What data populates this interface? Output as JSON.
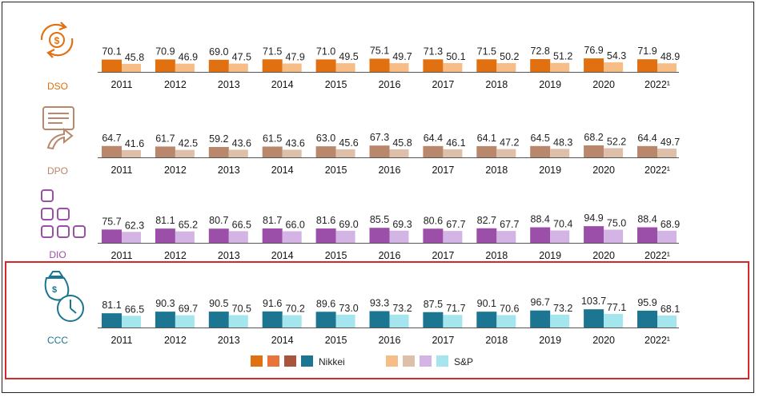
{
  "chart_data": [
    {
      "type": "bar",
      "name": "DSO",
      "title": "DSO",
      "categories": [
        "2011",
        "2012",
        "2013",
        "2014",
        "2015",
        "2016",
        "2017",
        "2018",
        "2019",
        "2020",
        "2022¹"
      ],
      "series": [
        {
          "values": [
            70.1,
            70.9,
            69.0,
            71.5,
            71.0,
            75.1,
            71.3,
            71.5,
            72.8,
            76.9,
            71.9
          ]
        },
        {
          "values": [
            45.8,
            46.9,
            47.5,
            47.9,
            49.5,
            49.7,
            50.1,
            50.2,
            51.2,
            54.3,
            48.9
          ]
        }
      ],
      "colors": [
        "#e07010",
        "#f7bd86"
      ],
      "icon": "money-cycle-icon"
    },
    {
      "type": "bar",
      "name": "DPO",
      "title": "DPO",
      "categories": [
        "2011",
        "2012",
        "2013",
        "2014",
        "2015",
        "2016",
        "2017",
        "2018",
        "2019",
        "2020",
        "2022¹"
      ],
      "series": [
        {
          "values": [
            64.7,
            61.7,
            59.2,
            61.5,
            63.0,
            67.3,
            64.4,
            64.1,
            64.5,
            68.2,
            64.4
          ]
        },
        {
          "values": [
            41.6,
            42.5,
            43.6,
            43.6,
            45.6,
            45.8,
            46.1,
            47.2,
            48.3,
            52.2,
            49.7
          ]
        }
      ],
      "colors": [
        "#b8876c",
        "#dec0aa"
      ],
      "icon": "invoice-icon"
    },
    {
      "type": "bar",
      "name": "DIO",
      "title": "DIO",
      "categories": [
        "2011",
        "2012",
        "2013",
        "2014",
        "2015",
        "2016",
        "2017",
        "2018",
        "2019",
        "2020",
        "2022¹"
      ],
      "series": [
        {
          "values": [
            75.7,
            81.1,
            80.7,
            81.7,
            81.6,
            85.5,
            80.6,
            82.7,
            88.4,
            94.9,
            88.4
          ]
        },
        {
          "values": [
            62.3,
            65.2,
            66.5,
            66.0,
            69.0,
            69.3,
            67.7,
            67.7,
            70.4,
            75.0,
            68.9
          ]
        }
      ],
      "colors": [
        "#9b4fa8",
        "#d4b4e4"
      ],
      "icon": "boxes-icon"
    },
    {
      "type": "bar",
      "name": "CCC",
      "title": "CCC",
      "categories": [
        "2011",
        "2012",
        "2013",
        "2014",
        "2015",
        "2016",
        "2017",
        "2018",
        "2019",
        "2020",
        "2022¹"
      ],
      "series": [
        {
          "values": [
            81.1,
            90.3,
            90.5,
            91.6,
            89.6,
            93.3,
            87.5,
            90.1,
            96.7,
            103.7,
            95.9
          ]
        },
        {
          "values": [
            66.5,
            69.7,
            70.5,
            70.2,
            73.0,
            73.2,
            71.7,
            70.6,
            73.2,
            77.1,
            68.1
          ]
        }
      ],
      "colors": [
        "#1c7591",
        "#a5e5ed"
      ],
      "icon": "money-clock-icon",
      "highlighted": true,
      "highlight_color": "#d62828"
    }
  ],
  "legend": {
    "placement": "bottom-center",
    "groups": [
      {
        "label": "Nikkei",
        "swatches": [
          "#e07010",
          "#e8743a",
          "#a8553c",
          "#1c7591"
        ]
      },
      {
        "label": "S&P",
        "swatches": [
          "#f7bd86",
          "#dec0aa",
          "#d4b4e4",
          "#a5e5ed"
        ]
      }
    ]
  }
}
